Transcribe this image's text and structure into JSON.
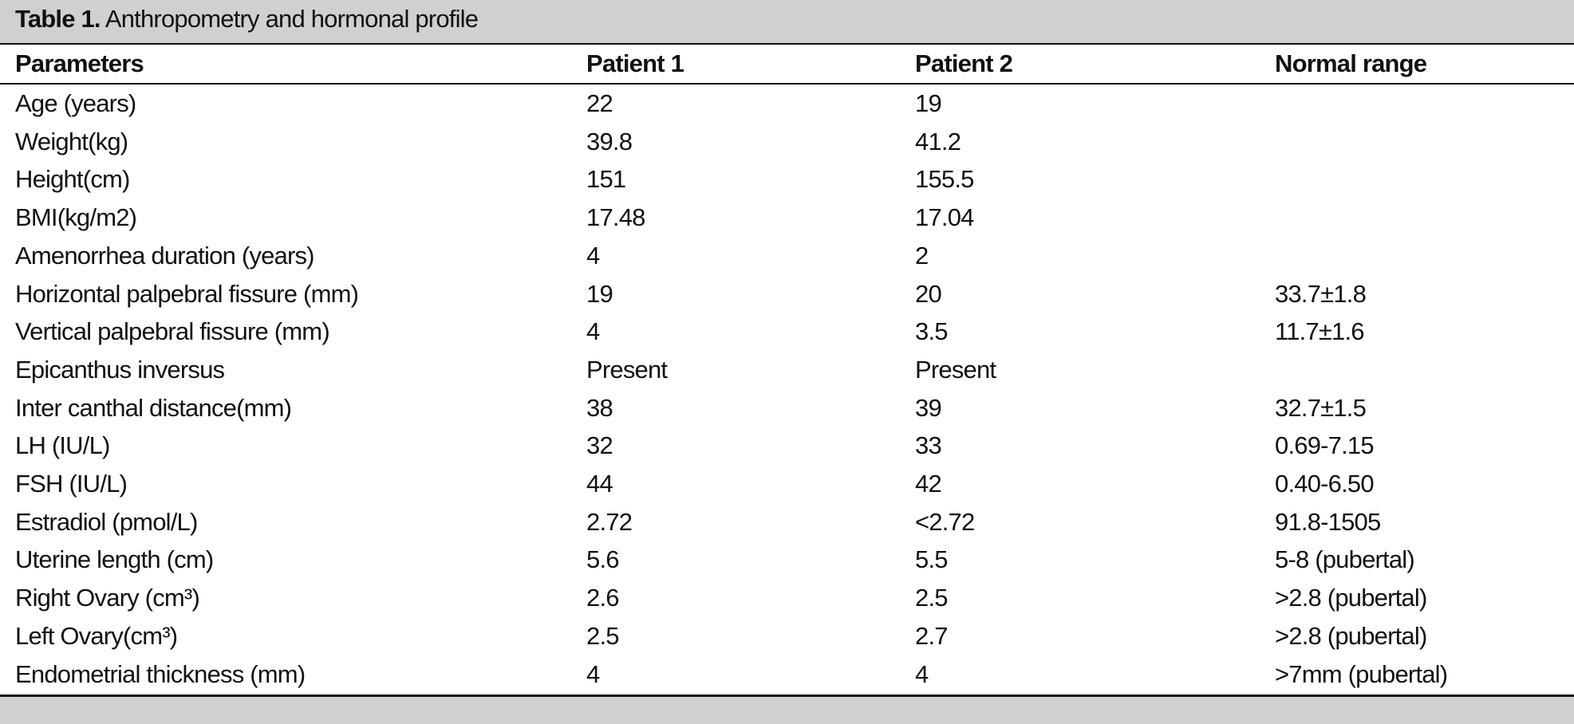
{
  "caption": {
    "label": "Table 1.",
    "text": "Anthropometry and hormonal profile"
  },
  "table": {
    "header": [
      "Parameters",
      "Patient 1",
      "Patient 2",
      "Normal range"
    ],
    "rows": [
      [
        "Age (years)",
        "22",
        "19",
        null
      ],
      [
        "Weight(kg)",
        "39.8",
        "41.2",
        null
      ],
      [
        "Height(cm)",
        "151",
        "155.5",
        null
      ],
      [
        "BMI(kg/m2)",
        "17.48",
        "17.04",
        null
      ],
      [
        "Amenorrhea duration (years)",
        "4",
        "2",
        null
      ],
      [
        "Horizontal palpebral fissure (mm)",
        "19",
        "20",
        "33.7±1.8"
      ],
      [
        "Vertical palpebral fissure (mm)",
        "4",
        "3.5",
        "11.7±1.6"
      ],
      [
        "Epicanthus inversus",
        "Present",
        "Present",
        null
      ],
      [
        "Inter canthal distance(mm)",
        "38",
        "39",
        "32.7±1.5"
      ],
      [
        "LH (IU/L)",
        "32",
        "33",
        "0.69-7.15"
      ],
      [
        "FSH (IU/L)",
        "44",
        "42",
        "0.40-6.50"
      ],
      [
        "Estradiol (pmol/L)",
        "2.72",
        "<2.72",
        "91.8-1505"
      ],
      [
        "Uterine length (cm)",
        "5.6",
        "5.5",
        "5-8 (pubertal)"
      ],
      [
        "Right Ovary (cm³)",
        "2.6",
        "2.5",
        ">2.8 (pubertal)"
      ],
      [
        "Left Ovary(cm³)",
        "2.5",
        "2.7",
        ">2.8 (pubertal)"
      ],
      [
        "Endometrial thickness (mm)",
        "4",
        "4",
        ">7mm (pubertal)"
      ]
    ]
  }
}
